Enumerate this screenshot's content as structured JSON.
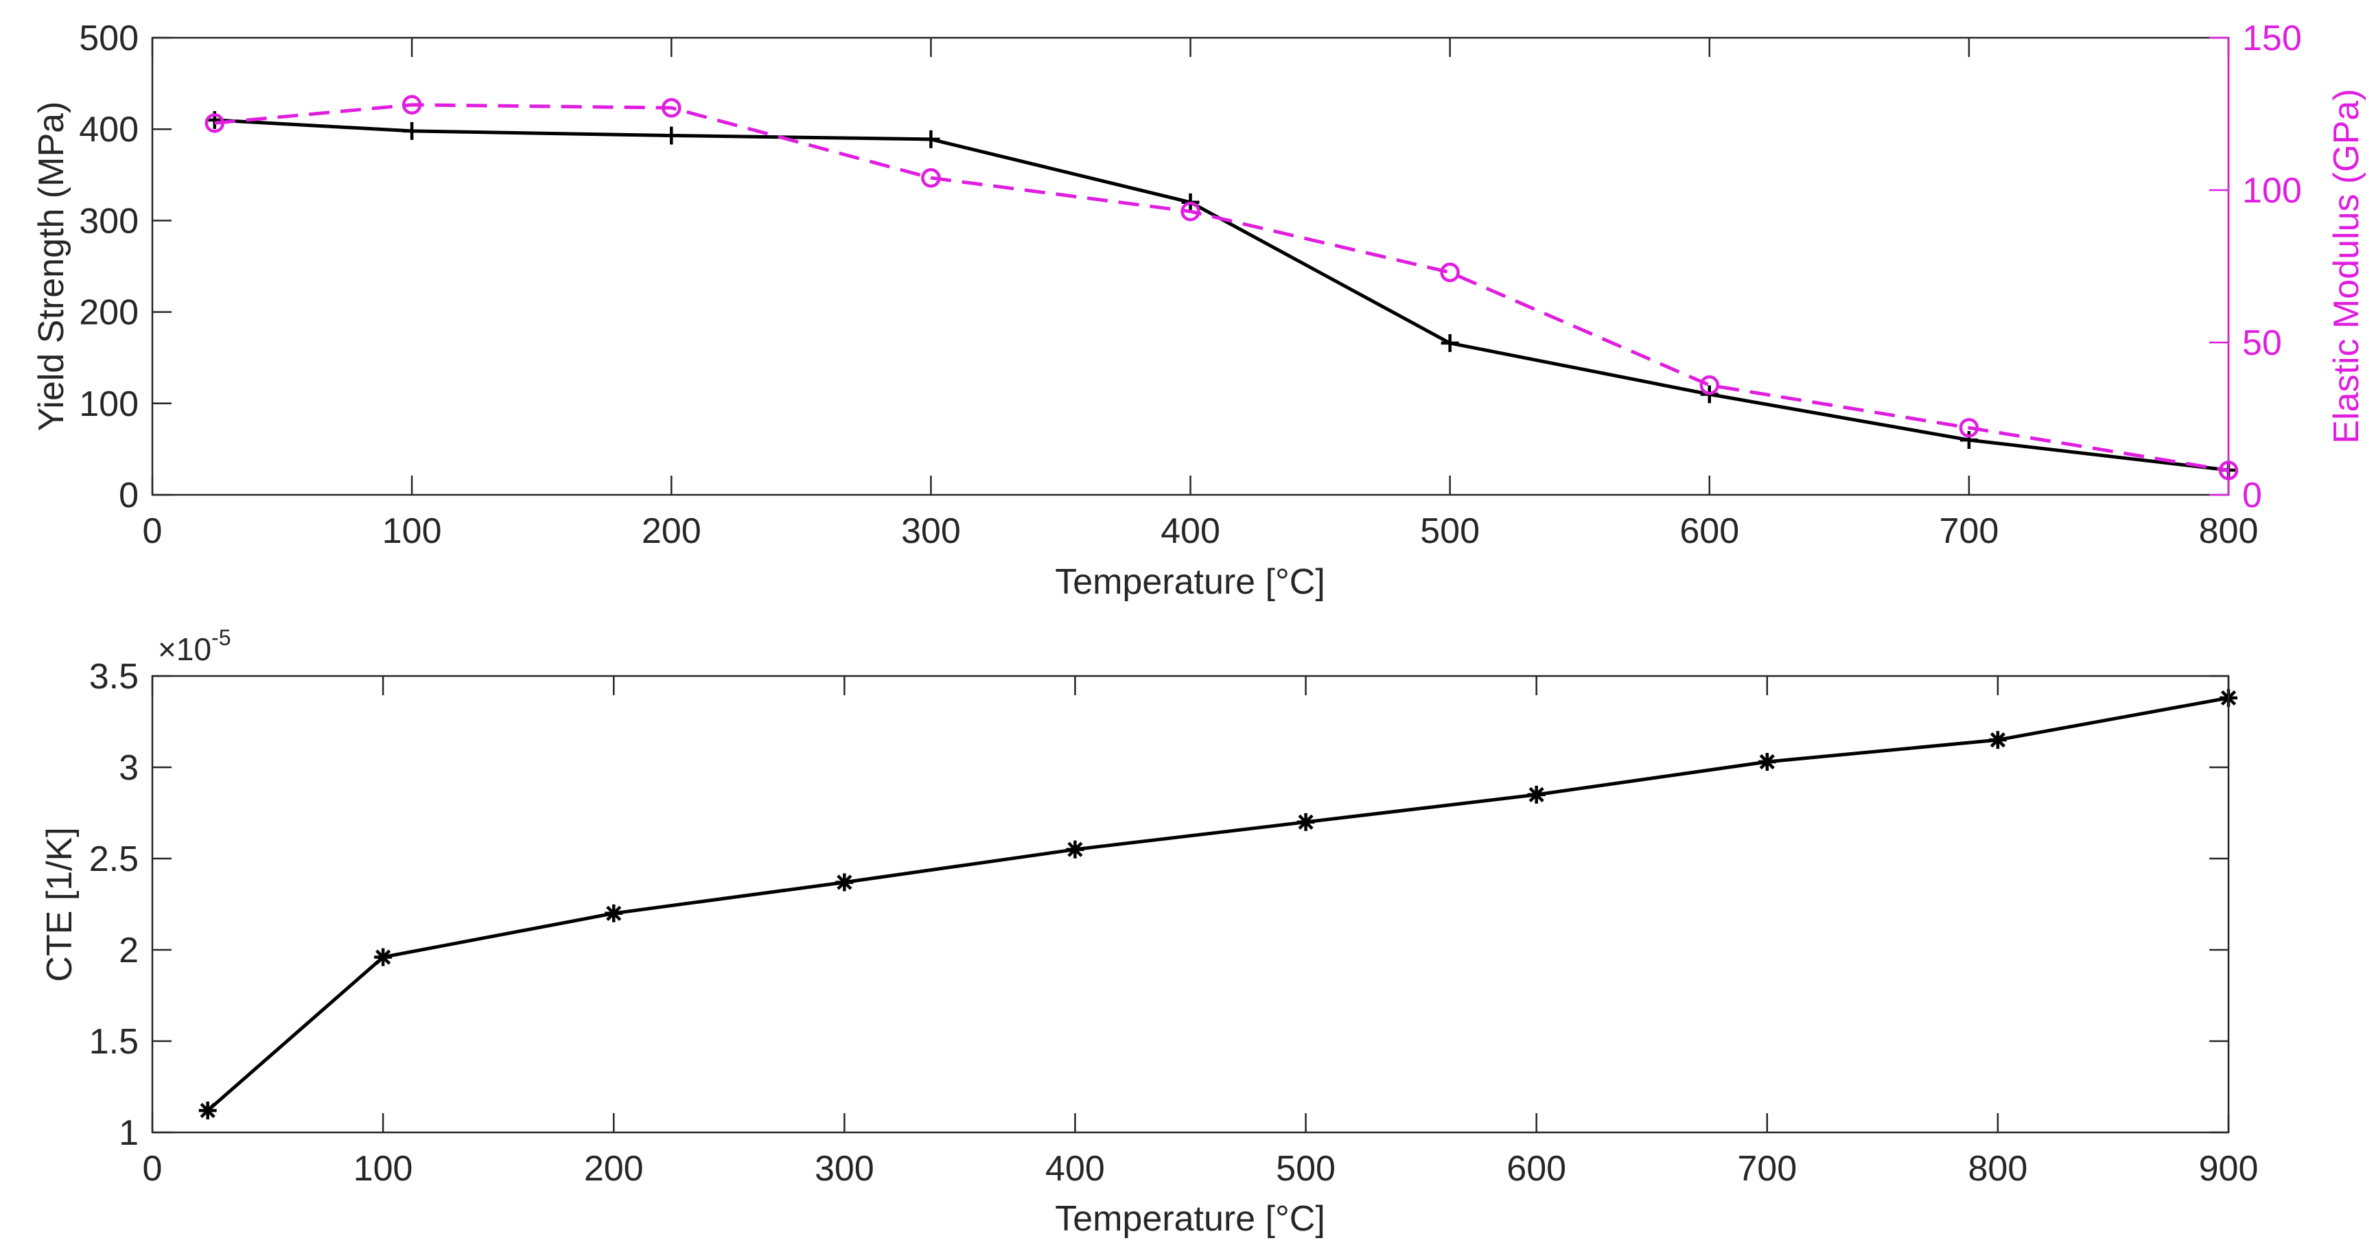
{
  "chart_data": [
    {
      "type": "line",
      "xlabel": "Temperature [°C]",
      "ylabel": "Yield Strength (MPa)",
      "y2label": "Elastic Modulus (GPa)",
      "xlim": [
        0,
        800
      ],
      "ylim": [
        0,
        500
      ],
      "y2lim": [
        0,
        150
      ],
      "xticks": [
        "0",
        "100",
        "200",
        "300",
        "400",
        "500",
        "600",
        "700",
        "800"
      ],
      "yticks": [
        "0",
        "100",
        "200",
        "300",
        "400",
        "500"
      ],
      "y2ticks": [
        "0",
        "50",
        "100",
        "150"
      ],
      "grid": false,
      "colors": {
        "axis": "#262626",
        "series1": "#000000",
        "series2": "#e01ee0"
      },
      "series": [
        {
          "name": "Yield Strength",
          "axis": "left",
          "style": "solid",
          "marker": "plus",
          "x": [
            24,
            100,
            200,
            300,
            400,
            500,
            600,
            700,
            800
          ],
          "y": [
            410,
            398,
            393,
            389,
            320,
            166,
            110,
            60,
            27
          ]
        },
        {
          "name": "Elastic Modulus",
          "axis": "right",
          "style": "dashed",
          "marker": "circle",
          "x": [
            24,
            100,
            200,
            300,
            400,
            500,
            600,
            700,
            800
          ],
          "y": [
            122,
            128,
            127,
            104,
            93,
            73,
            36,
            22,
            8
          ]
        }
      ]
    },
    {
      "type": "line",
      "xlabel": "Temperature [°C]",
      "ylabel": "CTE [1/K]",
      "exponent_base": "×10",
      "exponent_power": "-5",
      "xlim": [
        0,
        900
      ],
      "ylim": [
        1,
        3.5
      ],
      "xticks": [
        "0",
        "100",
        "200",
        "300",
        "400",
        "500",
        "600",
        "700",
        "800",
        "900"
      ],
      "yticks": [
        "1",
        "1.5",
        "2",
        "2.5",
        "3",
        "3.5"
      ],
      "grid": false,
      "colors": {
        "axis": "#262626",
        "series1": "#000000"
      },
      "series": [
        {
          "name": "CTE",
          "style": "solid",
          "marker": "asterisk",
          "x": [
            24,
            100,
            200,
            300,
            400,
            500,
            600,
            700,
            800,
            900
          ],
          "y": [
            1.12,
            1.96,
            2.2,
            2.37,
            2.55,
            2.7,
            2.85,
            3.03,
            3.15,
            3.38
          ]
        }
      ]
    }
  ]
}
